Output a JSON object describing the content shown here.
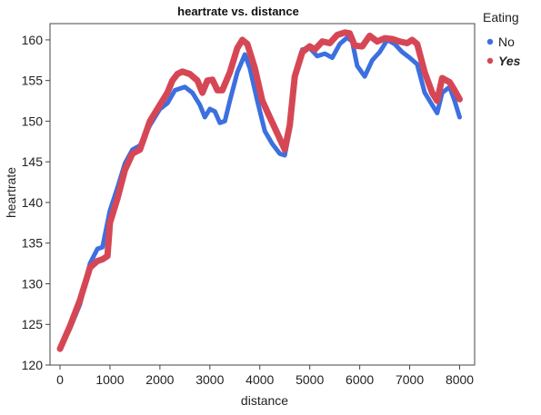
{
  "chart_data": {
    "type": "line",
    "title": "heartrate vs. distance",
    "xlabel": "distance",
    "ylabel": "heartrate",
    "xlim": [
      -200,
      8300
    ],
    "ylim": [
      120,
      162
    ],
    "xticks": [
      0,
      1000,
      2000,
      3000,
      4000,
      5000,
      6000,
      7000,
      8000
    ],
    "yticks": [
      120,
      125,
      130,
      135,
      140,
      145,
      150,
      155,
      160
    ],
    "grid": false,
    "legend": {
      "title": "Eating",
      "placement": "right"
    },
    "series": [
      {
        "name": "No",
        "color": "#3c6fe0",
        "points": [
          [
            0,
            122.0
          ],
          [
            200,
            124.5
          ],
          [
            400,
            127.5
          ],
          [
            600,
            132.5
          ],
          [
            750,
            134.3
          ],
          [
            850,
            134.5
          ],
          [
            1000,
            139.0
          ],
          [
            1150,
            141.8
          ],
          [
            1300,
            144.8
          ],
          [
            1450,
            146.5
          ],
          [
            1600,
            147.0
          ],
          [
            1800,
            149.5
          ],
          [
            2000,
            151.5
          ],
          [
            2150,
            152.2
          ],
          [
            2300,
            153.8
          ],
          [
            2500,
            154.2
          ],
          [
            2650,
            153.5
          ],
          [
            2800,
            152.0
          ],
          [
            2900,
            150.5
          ],
          [
            3000,
            151.5
          ],
          [
            3100,
            151.2
          ],
          [
            3200,
            149.8
          ],
          [
            3300,
            150.0
          ],
          [
            3400,
            152.5
          ],
          [
            3550,
            156.0
          ],
          [
            3700,
            158.2
          ],
          [
            3800,
            156.5
          ],
          [
            3950,
            152.5
          ],
          [
            4100,
            148.8
          ],
          [
            4250,
            147.2
          ],
          [
            4400,
            146.0
          ],
          [
            4500,
            145.8
          ],
          [
            4600,
            149.0
          ],
          [
            4700,
            155.5
          ],
          [
            4850,
            158.8
          ],
          [
            5000,
            159.0
          ],
          [
            5150,
            158.0
          ],
          [
            5300,
            158.3
          ],
          [
            5450,
            157.8
          ],
          [
            5600,
            159.5
          ],
          [
            5750,
            160.3
          ],
          [
            5850,
            159.8
          ],
          [
            5950,
            156.8
          ],
          [
            6100,
            155.5
          ],
          [
            6250,
            157.5
          ],
          [
            6400,
            158.5
          ],
          [
            6550,
            160.0
          ],
          [
            6700,
            159.5
          ],
          [
            6850,
            158.5
          ],
          [
            7000,
            157.8
          ],
          [
            7150,
            157.0
          ],
          [
            7300,
            153.5
          ],
          [
            7450,
            152.0
          ],
          [
            7550,
            151.0
          ],
          [
            7650,
            153.5
          ],
          [
            7800,
            154.2
          ],
          [
            7900,
            152.5
          ],
          [
            8000,
            150.5
          ]
        ]
      },
      {
        "name": "Yes",
        "color": "#d64755",
        "points": [
          [
            0,
            122.0
          ],
          [
            200,
            124.8
          ],
          [
            400,
            128.0
          ],
          [
            600,
            132.0
          ],
          [
            750,
            132.8
          ],
          [
            850,
            133.0
          ],
          [
            950,
            133.4
          ],
          [
            1000,
            137.5
          ],
          [
            1150,
            140.5
          ],
          [
            1300,
            144.0
          ],
          [
            1450,
            146.0
          ],
          [
            1600,
            146.5
          ],
          [
            1800,
            150.0
          ],
          [
            2000,
            152.0
          ],
          [
            2150,
            153.5
          ],
          [
            2250,
            155.0
          ],
          [
            2350,
            155.8
          ],
          [
            2450,
            156.1
          ],
          [
            2600,
            155.8
          ],
          [
            2750,
            155.0
          ],
          [
            2850,
            153.5
          ],
          [
            2950,
            155.0
          ],
          [
            3050,
            155.1
          ],
          [
            3150,
            153.8
          ],
          [
            3250,
            153.8
          ],
          [
            3400,
            156.0
          ],
          [
            3550,
            159.0
          ],
          [
            3650,
            160.0
          ],
          [
            3750,
            159.5
          ],
          [
            3900,
            156.5
          ],
          [
            4050,
            152.5
          ],
          [
            4200,
            150.5
          ],
          [
            4350,
            148.5
          ],
          [
            4500,
            146.5
          ],
          [
            4600,
            149.5
          ],
          [
            4700,
            155.5
          ],
          [
            4850,
            158.5
          ],
          [
            5000,
            159.2
          ],
          [
            5100,
            158.8
          ],
          [
            5250,
            159.8
          ],
          [
            5400,
            159.6
          ],
          [
            5550,
            160.6
          ],
          [
            5700,
            160.9
          ],
          [
            5800,
            160.8
          ],
          [
            5900,
            159.3
          ],
          [
            6050,
            159.2
          ],
          [
            6200,
            160.5
          ],
          [
            6350,
            159.8
          ],
          [
            6500,
            160.2
          ],
          [
            6650,
            160.1
          ],
          [
            6800,
            159.8
          ],
          [
            6950,
            159.6
          ],
          [
            7050,
            160.0
          ],
          [
            7150,
            159.5
          ],
          [
            7300,
            156.0
          ],
          [
            7450,
            153.5
          ],
          [
            7550,
            152.5
          ],
          [
            7650,
            155.3
          ],
          [
            7800,
            154.8
          ],
          [
            7900,
            153.8
          ],
          [
            8000,
            152.7
          ]
        ]
      }
    ]
  }
}
